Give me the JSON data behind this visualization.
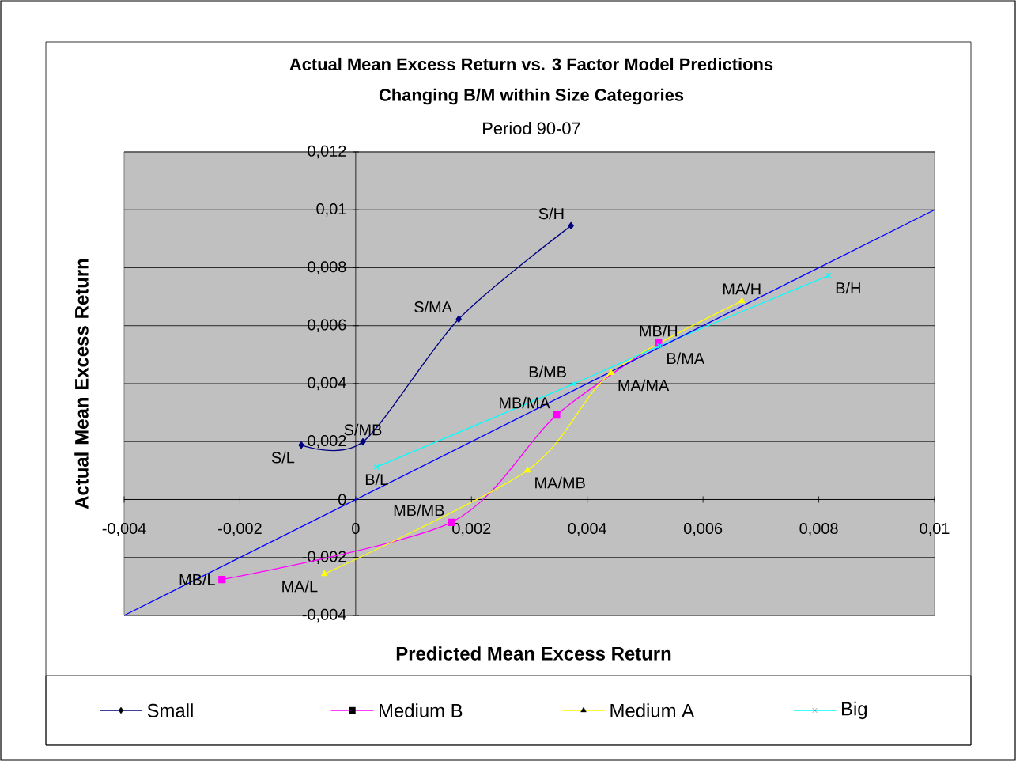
{
  "chart_data": {
    "type": "line",
    "title": "Actual Mean Excess Return vs. 3 Factor Model Predictions",
    "subtitle": "Changing B/M within Size Categories",
    "xlabel": "Predicted Mean Excess Return",
    "ylabel": "Actual Mean Excess Return",
    "xlim": [
      -0.004,
      0.01
    ],
    "ylim": [
      -0.004,
      0.012
    ],
    "xticks": [
      {
        "value": -0.004,
        "label": "-0,004"
      },
      {
        "value": -0.002,
        "label": "-0,002"
      },
      0,
      {
        "value": 0.002,
        "label": "0,002"
      },
      {
        "value": 0.004,
        "label": "0,004"
      },
      {
        "value": 0.006,
        "label": "0,006"
      },
      {
        "value": 0.008,
        "label": "0,008"
      },
      {
        "value": 0.01,
        "label": "0,01"
      }
    ],
    "yticks": [
      {
        "value": -0.004,
        "label": "-0,004"
      },
      {
        "value": -0.002,
        "label": "-0,002"
      },
      0,
      {
        "value": 0.002,
        "label": "0,002"
      },
      {
        "value": 0.004,
        "label": "0,004"
      },
      {
        "value": 0.006,
        "label": "0,006"
      },
      {
        "value": 0.008,
        "label": "0,008"
      },
      {
        "value": 0.01,
        "label": "0,01"
      },
      {
        "value": 0.012,
        "label": "0,012"
      }
    ],
    "grid": "y",
    "legend": "bottom",
    "series": [
      {
        "name": "Small",
        "color": "#000080",
        "marker": "diamond",
        "x": [
          -0.00094,
          0.000125,
          0.00178,
          0.00372
        ],
        "values": [
          0.00188,
          0.00199,
          0.00623,
          0.00945
        ]
      },
      {
        "name": "Medium B",
        "color": "#ff00ff",
        "marker": "square",
        "x": [
          -0.00231,
          0.00165,
          0.00347,
          0.00523
        ],
        "values": [
          -0.00276,
          -0.00079,
          0.00292,
          0.0054
        ]
      },
      {
        "name": "Medium A",
        "color": "#ffff00",
        "marker": "triangle",
        "x": [
          -0.00054,
          0.00297,
          0.00441,
          0.00667
        ],
        "values": [
          -0.00257,
          0.00101,
          0.00437,
          0.00685
        ]
      },
      {
        "name": "Big",
        "color": "#00ffff",
        "marker": "cross",
        "x": [
          0.00036,
          0.00376,
          0.00525,
          0.00817
        ],
        "values": [
          0.00112,
          0.00399,
          0.0053,
          0.00773
        ]
      },
      {
        "color": "#0000ff",
        "marker": "none",
        "x": [
          -0.004,
          0.01
        ],
        "values": [
          -0.004,
          0.01
        ]
      }
    ],
    "annotations": [
      "Period 90-07",
      {
        "text": "S/L",
        "x": -0.00094,
        "y": 0.00188
      },
      {
        "text": "S/MB",
        "x": 0.000125,
        "y": 0.00199
      },
      {
        "text": "S/MA",
        "x": 0.00178,
        "y": 0.00623
      },
      {
        "text": "S/H",
        "x": 0.00372,
        "y": 0.00945
      },
      {
        "text": "MB/L",
        "x": -0.00231,
        "y": -0.00276
      },
      {
        "text": "MB/MB",
        "x": 0.00165,
        "y": -0.00079
      },
      {
        "text": "MB/MA",
        "x": 0.00347,
        "y": 0.00292
      },
      {
        "text": "MB/H",
        "x": 0.00523,
        "y": 0.0054
      },
      {
        "text": "MA/L",
        "x": -0.00054,
        "y": -0.00257
      },
      {
        "text": "MA/MB",
        "x": 0.00297,
        "y": 0.00101
      },
      {
        "text": "MA/MA",
        "x": 0.00441,
        "y": 0.00437
      },
      {
        "text": "MA/H",
        "x": 0.00667,
        "y": 0.00685
      },
      {
        "text": "B/L",
        "x": 0.00036,
        "y": 0.00112
      },
      {
        "text": "B/MB",
        "x": 0.00376,
        "y": 0.00399
      },
      {
        "text": "B/MA",
        "x": 0.00525,
        "y": 0.0053
      },
      {
        "text": "B/H",
        "x": 0.00817,
        "y": 0.00773
      }
    ]
  }
}
